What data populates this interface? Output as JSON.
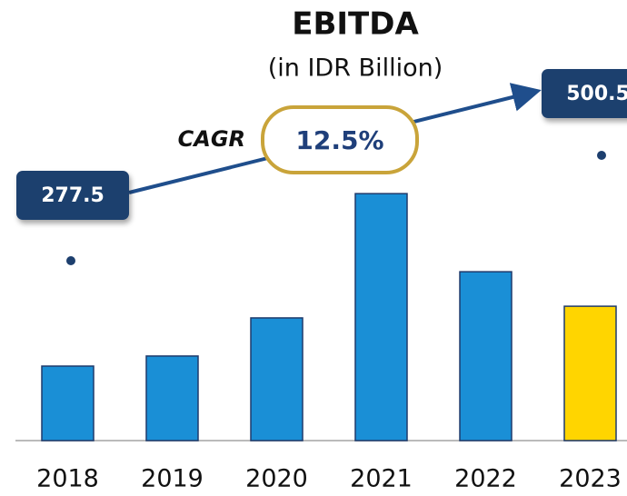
{
  "chart_data": {
    "type": "bar",
    "title": "EBITDA",
    "subtitle": "(in IDR Billion)",
    "categories": [
      "2018",
      "2019",
      "2020",
      "2021",
      "2022",
      "2023"
    ],
    "values": [
      277.5,
      315,
      457,
      920,
      629,
      500.5
    ],
    "colors": [
      "#1a8fd6",
      "#1a8fd6",
      "#1a8fd6",
      "#1a8fd6",
      "#1a8fd6",
      "#ffd500"
    ],
    "ylim": [
      0,
      1000
    ],
    "cagr_label": "CAGR",
    "cagr_value": "12.5%"
  }
}
